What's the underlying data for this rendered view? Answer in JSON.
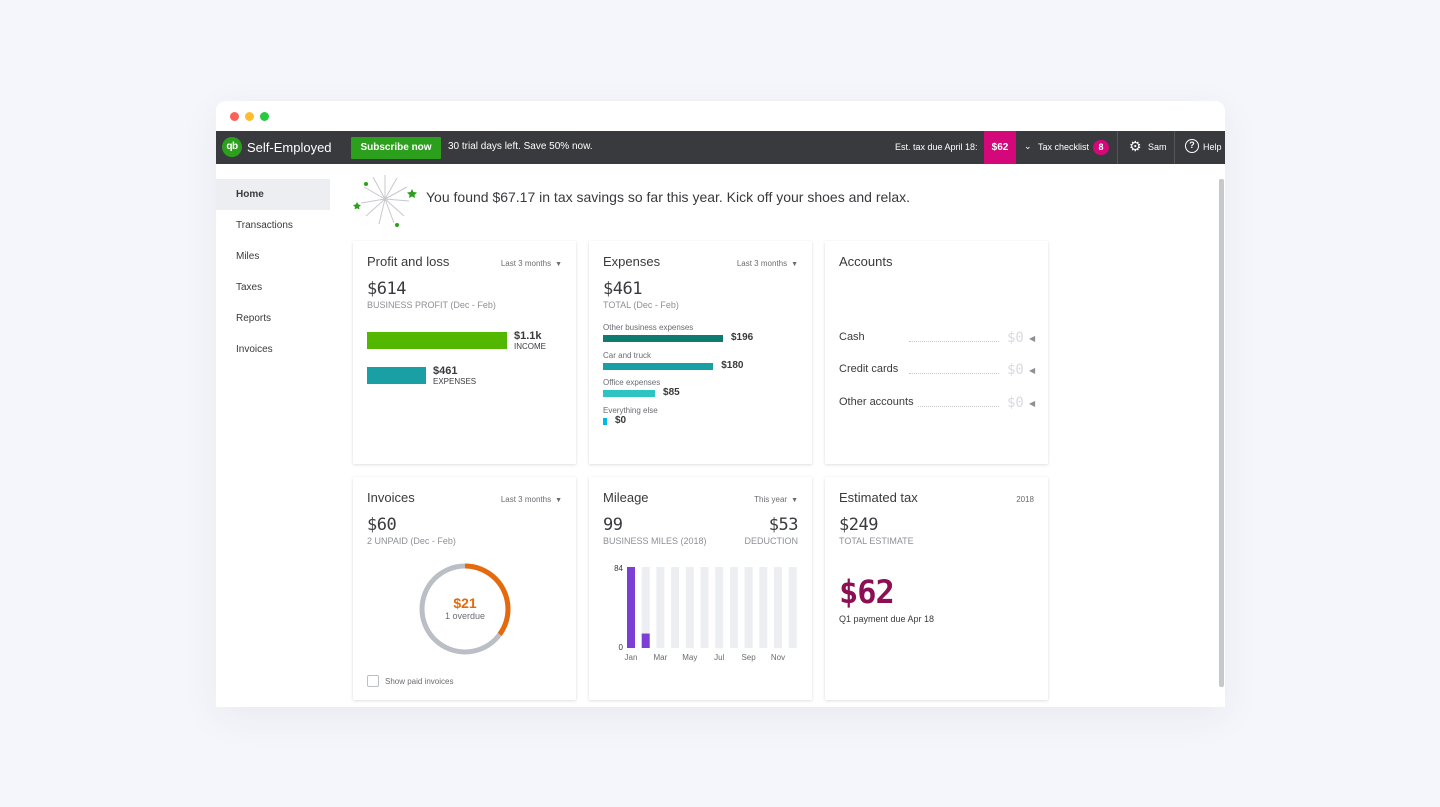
{
  "window": {
    "controls": [
      "close",
      "minimize",
      "maximize"
    ]
  },
  "topbar": {
    "logo_text": "qb",
    "brand": "Self-Employed",
    "subscribe_label": "Subscribe now",
    "trial_text": "30 trial days left.  Save 50% now.",
    "est_tax_label": "Est. tax due April 18:",
    "est_tax_amount": "$62",
    "checklist_label": "Tax checklist",
    "checklist_count": "8",
    "user_label": "Sam",
    "help_label": "Help"
  },
  "sidebar": {
    "items": [
      {
        "label": "Home",
        "active": true
      },
      {
        "label": "Transactions"
      },
      {
        "label": "Miles"
      },
      {
        "label": "Taxes"
      },
      {
        "label": "Reports"
      },
      {
        "label": "Invoices"
      }
    ]
  },
  "banner": {
    "message": "You found $67.17 in tax savings so far this year. Kick off your shoes and relax."
  },
  "profit_loss": {
    "title": "Profit and loss",
    "filter": "Last 3 months",
    "amount": "$614",
    "subtitle": "BUSINESS PROFIT (Dec - Feb)",
    "income_value": "$1.1k",
    "income_label": "INCOME",
    "expenses_value": "$461",
    "expenses_label": "EXPENSES",
    "colors": {
      "income": "#53b700",
      "expenses": "#1a9fa4"
    }
  },
  "expenses": {
    "title": "Expenses",
    "filter": "Last 3 months",
    "amount": "$461",
    "subtitle": "TOTAL (Dec - Feb)",
    "items": [
      {
        "label": "Other business expenses",
        "value": "$196",
        "amount": 196,
        "color": "#0e7a72"
      },
      {
        "label": "Car and truck",
        "value": "$180",
        "amount": 180,
        "color": "#1a9fa4"
      },
      {
        "label": "Office expenses",
        "value": "$85",
        "amount": 85,
        "color": "#2ec4c4"
      },
      {
        "label": "Everything else",
        "value": "$0",
        "amount": 0,
        "color": "#00b9e8"
      }
    ]
  },
  "accounts": {
    "title": "Accounts",
    "rows": [
      {
        "name": "Cash",
        "value": "$0"
      },
      {
        "name": "Credit cards",
        "value": "$0"
      },
      {
        "name": "Other accounts",
        "value": "$0"
      }
    ]
  },
  "invoices": {
    "title": "Invoices",
    "filter": "Last 3 months",
    "amount": "$60",
    "subtitle": "2 UNPAID (Dec - Feb)",
    "overdue_amount": "$21",
    "overdue_label": "1 overdue",
    "overdue_fraction": 0.35,
    "show_paid_label": "Show paid invoices",
    "colors": {
      "overdue": "#e66a0b",
      "unpaid": "#babec5"
    }
  },
  "mileage": {
    "title": "Mileage",
    "filter": "This year",
    "miles": "99",
    "miles_label": "BUSINESS MILES (2018)",
    "deduction": "$53",
    "deduction_label": "DEDUCTION"
  },
  "estimated_tax": {
    "title": "Estimated tax",
    "year": "2018",
    "amount": "$249",
    "subtitle": "TOTAL ESTIMATE",
    "quarter_amount": "$62",
    "quarter_note": "Q1 payment due Apr 18",
    "color": "#8d0f53"
  },
  "chart_data": {
    "type": "bar",
    "categories": [
      "Jan",
      "Feb",
      "Mar",
      "Apr",
      "May",
      "Jun",
      "Jul",
      "Aug",
      "Sep",
      "Oct",
      "Nov",
      "Dec"
    ],
    "tick_labels": [
      "Jan",
      "Mar",
      "May",
      "Jul",
      "Sep",
      "Nov"
    ],
    "values": [
      84,
      15,
      0,
      0,
      0,
      0,
      0,
      0,
      0,
      0,
      0,
      0
    ],
    "ylim": [
      0,
      84
    ],
    "yticks": [
      "84",
      "0"
    ],
    "colors": {
      "bar": "#7c3fd6",
      "track": "#eceef1"
    }
  }
}
